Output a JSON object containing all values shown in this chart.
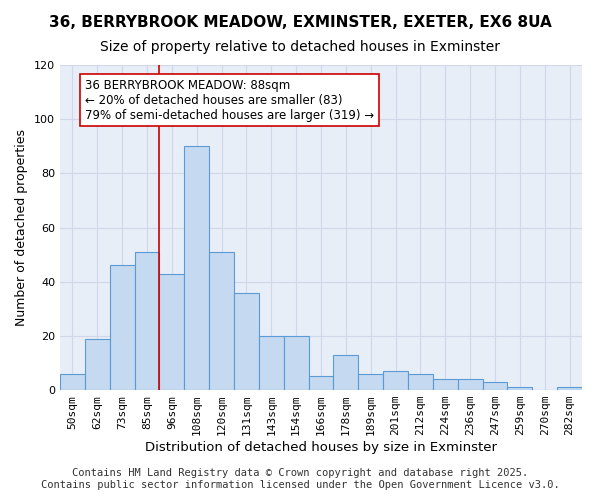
{
  "title_line1": "36, BERRYBROOK MEADOW, EXMINSTER, EXETER, EX6 8UA",
  "title_line2": "Size of property relative to detached houses in Exminster",
  "xlabel": "Distribution of detached houses by size in Exminster",
  "ylabel": "Number of detached properties",
  "categories": [
    "50sqm",
    "62sqm",
    "73sqm",
    "85sqm",
    "96sqm",
    "108sqm",
    "120sqm",
    "131sqm",
    "143sqm",
    "154sqm",
    "166sqm",
    "178sqm",
    "189sqm",
    "201sqm",
    "212sqm",
    "224sqm",
    "236sqm",
    "247sqm",
    "259sqm",
    "270sqm",
    "282sqm"
  ],
  "values": [
    6,
    19,
    46,
    51,
    43,
    90,
    51,
    36,
    20,
    20,
    5,
    13,
    6,
    7,
    6,
    4,
    4,
    3,
    1,
    0,
    1
  ],
  "bar_color": "#c5d9f0",
  "bar_edge_color": "#5b9bd5",
  "red_line_index": 3.5,
  "red_line_label": "36 BERRYBROOK MEADOW: 88sqm",
  "annotation_line2": "← 20% of detached houses are smaller (83)",
  "annotation_line3": "79% of semi-detached houses are larger (319) →",
  "annotation_box_color": "#ffffff",
  "annotation_box_edge": "#cc0000",
  "ylim": [
    0,
    120
  ],
  "yticks": [
    0,
    20,
    40,
    60,
    80,
    100,
    120
  ],
  "grid_color": "#d0d8e8",
  "background_color": "#e8eef8",
  "footer_line1": "Contains HM Land Registry data © Crown copyright and database right 2025.",
  "footer_line2": "Contains public sector information licensed under the Open Government Licence v3.0.",
  "title_fontsize": 11,
  "subtitle_fontsize": 10,
  "axis_label_fontsize": 9,
  "tick_fontsize": 8,
  "annotation_fontsize": 8.5,
  "footer_fontsize": 7.5
}
